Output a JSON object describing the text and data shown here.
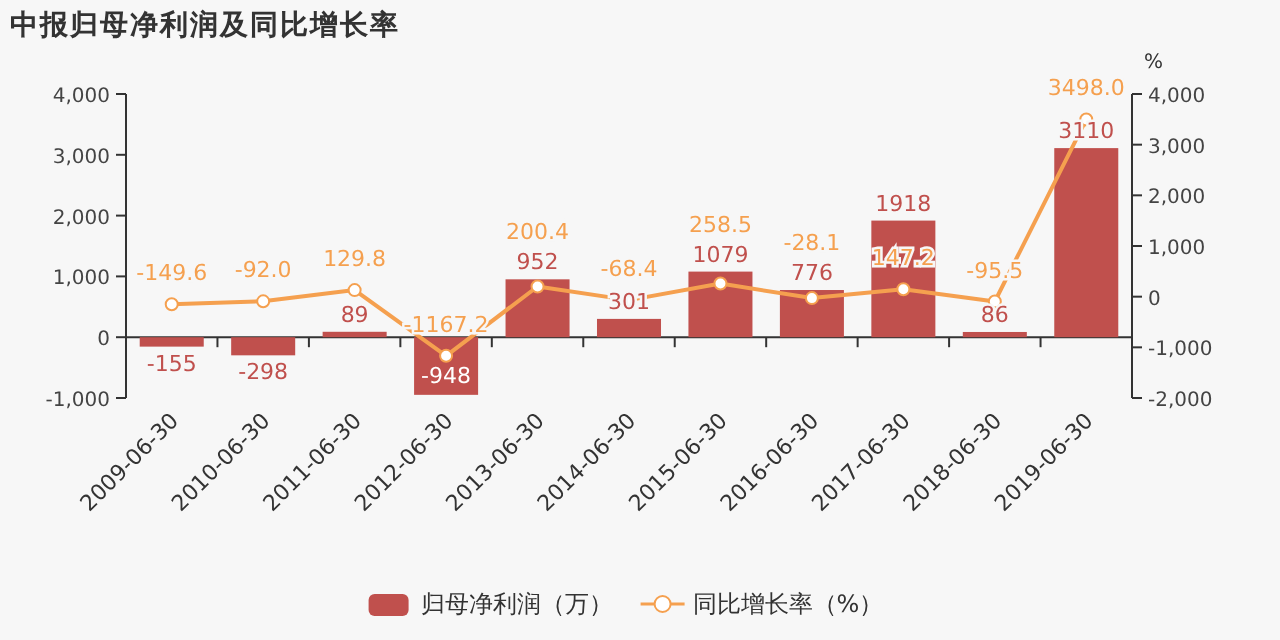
{
  "chart_data": {
    "type": "bar",
    "title": "中报归母净利润及同比增长率",
    "categories": [
      "2009-06-30",
      "2010-06-30",
      "2011-06-30",
      "2012-06-30",
      "2013-06-30",
      "2014-06-30",
      "2015-06-30",
      "2016-06-30",
      "2017-06-30",
      "2018-06-30",
      "2019-06-30"
    ],
    "series": [
      {
        "name": "归母净利润（万）",
        "color": "#c0504d",
        "values": [
          -155,
          -298,
          89,
          -948,
          952,
          301,
          1079,
          776,
          1918,
          86,
          3110
        ]
      },
      {
        "name": "同比增长率（%）",
        "type": "line",
        "axis": "y2",
        "color": "#f5a04f",
        "marker": "circle",
        "values": [
          -149.6,
          -92,
          129.8,
          -1167.2,
          200.4,
          -68.4,
          258.5,
          -28.1,
          147.2,
          -95.5,
          3498
        ],
        "value_labels": [
          "-149.6",
          "-92.0",
          "129.8",
          "-1167.2",
          "200.4",
          "-68.4",
          "258.5",
          "-28.1",
          "147.2",
          "-95.5",
          "3498.0"
        ]
      }
    ],
    "y2label": "%",
    "ylim": [
      -1000,
      4000
    ],
    "yticks": [
      {
        "value": -1000,
        "label": "-1,000"
      },
      0,
      {
        "value": 1000,
        "label": "1,000"
      },
      {
        "value": 2000,
        "label": "2,000"
      },
      {
        "value": 3000,
        "label": "3,000"
      },
      {
        "value": 4000,
        "label": "4,000"
      }
    ],
    "y2lim": [
      -2000,
      4000
    ],
    "y2ticks": [
      {
        "value": -2000,
        "label": "-2,000"
      },
      {
        "value": -1000,
        "label": "-1,000"
      },
      0,
      {
        "value": 1000,
        "label": "1,000"
      },
      {
        "value": 2000,
        "label": "2,000"
      },
      {
        "value": 3000,
        "label": "3,000"
      },
      {
        "value": 4000,
        "label": "4,000"
      }
    ],
    "data_labels": true,
    "legend": "bottom"
  }
}
